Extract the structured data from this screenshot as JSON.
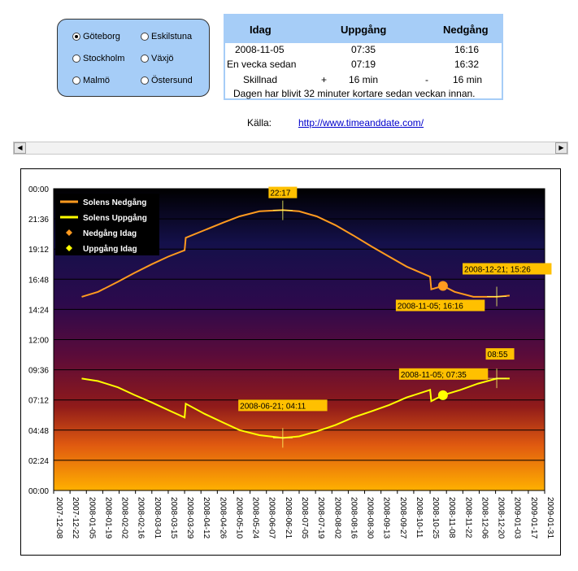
{
  "cities": {
    "options": [
      "Göteborg",
      "Eskilstuna",
      "Stockholm",
      "Växjö",
      "Malmö",
      "Östersund"
    ],
    "selected": "Göteborg"
  },
  "table": {
    "headers": [
      "Idag",
      "Uppgång",
      "Nedgång"
    ],
    "today": {
      "date": "2008-11-05",
      "rise": "07:35",
      "set": "16:16"
    },
    "week_ago": {
      "label": "En vecka sedan",
      "rise": "07:19",
      "set": "16:32"
    },
    "diff": {
      "label": "Skillnad",
      "rise_sign": "+",
      "rise": "16 min",
      "set_sign": "-",
      "set": "16 min"
    },
    "summary": "Dagen har blivit 32 minuter kortare sedan veckan innan."
  },
  "source": {
    "label": "Källa:",
    "link": "http://www.timeanddate.com/"
  },
  "chart_data": {
    "type": "line",
    "y_ticks": [
      "00:00",
      "02:24",
      "04:48",
      "07:12",
      "09:36",
      "12:00",
      "14:24",
      "16:48",
      "19:12",
      "21:36",
      "00:00"
    ],
    "ylim_hours": [
      0,
      24
    ],
    "x_ticks": [
      "2007-12-08",
      "2007-12-22",
      "2008-01-05",
      "2008-01-19",
      "2008-02-02",
      "2008-02-16",
      "2008-03-01",
      "2008-03-15",
      "2008-03-29",
      "2008-04-12",
      "2008-04-26",
      "2008-05-10",
      "2008-05-24",
      "2008-06-07",
      "2008-06-21",
      "2008-07-05",
      "2008-07-19",
      "2008-08-02",
      "2008-08-16",
      "2008-08-30",
      "2008-09-13",
      "2008-09-27",
      "2008-10-11",
      "2008-10-25",
      "2008-11-08",
      "2008-11-22",
      "2008-12-06",
      "2008-12-20",
      "2009-01-03",
      "2009-01-17",
      "2009-01-31"
    ],
    "series": [
      {
        "name": "Solens Nedgång",
        "color": "#ff9a1f",
        "points": [
          [
            "2008-01-01",
            15.4
          ],
          [
            "2008-01-15",
            15.8
          ],
          [
            "2008-02-01",
            16.6
          ],
          [
            "2008-02-15",
            17.3
          ],
          [
            "2008-03-01",
            18.0
          ],
          [
            "2008-03-15",
            18.6
          ],
          [
            "2008-03-29",
            19.1
          ],
          [
            "2008-03-30",
            20.1
          ],
          [
            "2008-04-15",
            20.7
          ],
          [
            "2008-05-01",
            21.3
          ],
          [
            "2008-05-15",
            21.8
          ],
          [
            "2008-06-01",
            22.2
          ],
          [
            "2008-06-21",
            22.3
          ],
          [
            "2008-07-05",
            22.2
          ],
          [
            "2008-07-20",
            21.8
          ],
          [
            "2008-08-05",
            21.1
          ],
          [
            "2008-08-20",
            20.3
          ],
          [
            "2008-09-05",
            19.4
          ],
          [
            "2008-09-20",
            18.6
          ],
          [
            "2008-10-05",
            17.8
          ],
          [
            "2008-10-25",
            17.0
          ],
          [
            "2008-10-26",
            16.0
          ],
          [
            "2008-11-05",
            16.27
          ],
          [
            "2008-11-15",
            15.8
          ],
          [
            "2008-12-01",
            15.4
          ],
          [
            "2008-12-21",
            15.4
          ],
          [
            "2009-01-01",
            15.5
          ]
        ]
      },
      {
        "name": "Solens Uppgång",
        "color": "#ffff00",
        "points": [
          [
            "2008-01-01",
            8.9
          ],
          [
            "2008-01-15",
            8.7
          ],
          [
            "2008-02-01",
            8.2
          ],
          [
            "2008-02-15",
            7.6
          ],
          [
            "2008-03-01",
            7.0
          ],
          [
            "2008-03-15",
            6.4
          ],
          [
            "2008-03-29",
            5.8
          ],
          [
            "2008-03-30",
            6.9
          ],
          [
            "2008-04-15",
            6.1
          ],
          [
            "2008-05-01",
            5.4
          ],
          [
            "2008-05-15",
            4.8
          ],
          [
            "2008-06-01",
            4.4
          ],
          [
            "2008-06-21",
            4.18
          ],
          [
            "2008-07-05",
            4.3
          ],
          [
            "2008-07-20",
            4.7
          ],
          [
            "2008-08-05",
            5.2
          ],
          [
            "2008-08-20",
            5.8
          ],
          [
            "2008-09-05",
            6.3
          ],
          [
            "2008-09-20",
            6.8
          ],
          [
            "2008-10-05",
            7.4
          ],
          [
            "2008-10-25",
            8.0
          ],
          [
            "2008-10-26",
            7.1
          ],
          [
            "2008-11-05",
            7.58
          ],
          [
            "2008-11-20",
            8.0
          ],
          [
            "2008-12-05",
            8.5
          ],
          [
            "2008-12-21",
            8.9
          ],
          [
            "2009-01-01",
            8.9
          ]
        ]
      },
      {
        "name": "Nedgång Idag",
        "color": "#ff9a1f",
        "points": [
          [
            "2008-11-05",
            16.27
          ]
        ]
      },
      {
        "name": "Uppgång Idag",
        "color": "#ffff00",
        "points": [
          [
            "2008-11-05",
            7.58
          ]
        ]
      }
    ],
    "annotations": [
      {
        "text": "22:17",
        "date": "2008-06-21",
        "value": 22.28
      },
      {
        "text": "2008-12-21; 15:26",
        "date": "2008-12-21",
        "value": 15.43
      },
      {
        "text": "2008-11-05; 16:16",
        "date": "2008-11-05",
        "value": 16.27
      },
      {
        "text": "08:55",
        "date": "2008-12-21",
        "value": 8.92
      },
      {
        "text": "2008-06-21; 04:11",
        "date": "2008-06-21",
        "value": 4.18
      },
      {
        "text": "2008-11-05; 07:35",
        "date": "2008-11-05",
        "value": 7.58
      }
    ],
    "legend_position": "top-left",
    "background": "gradient from black (top) through purple and red to orange (bottom)",
    "grid": "horizontal"
  }
}
